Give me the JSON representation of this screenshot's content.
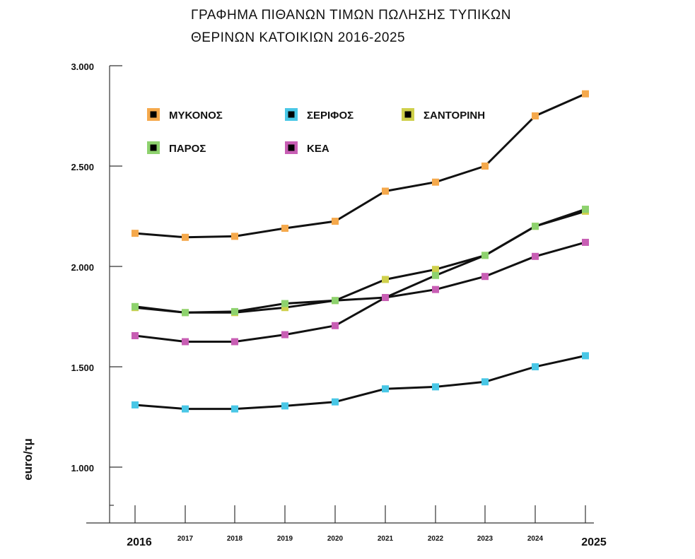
{
  "chart_data": {
    "type": "line",
    "title": [
      "ΓΡΑΦΗΜΑ ΠΙΘΑΝΩΝ ΤΙΜΩΝ ΠΩΛΗΣΗΣ ΤΥΠΙΚΩΝ",
      "ΘΕΡΙΝΩΝ ΚΑΤΟΙΚΙΩΝ 2016-2025"
    ],
    "xlabel": "",
    "ylabel": "euro/τμ",
    "x": [
      "2016",
      "2017",
      "2018",
      "2019",
      "2020",
      "2021",
      "2022",
      "2023",
      "2024",
      "2025"
    ],
    "ylim": [
      750,
      3000
    ],
    "yticks": [
      1000,
      1500,
      2000,
      2500,
      3000
    ],
    "ytick_labels": [
      "1.000",
      "1.500",
      "2.000",
      "2.500",
      "3.000"
    ],
    "series": [
      {
        "name": "ΜΥΚΟΝΟΣ",
        "color": "#F5A94C",
        "values": [
          2165,
          2145,
          2150,
          2190,
          2225,
          2375,
          2420,
          2500,
          2750,
          2860
        ]
      },
      {
        "name": "ΣΕΡΙΦΟΣ",
        "color": "#49C7E6",
        "values": [
          1310,
          1290,
          1290,
          1305,
          1325,
          1390,
          1400,
          1425,
          1500,
          1555
        ]
      },
      {
        "name": "ΣΑΝΤΟΡΙΝΗ",
        "color": "#CFD04C",
        "values": [
          1795,
          1770,
          1770,
          1795,
          1830,
          1935,
          1985,
          2055,
          2200,
          2275
        ]
      },
      {
        "name": "ΠΑΡΟΣ",
        "color": "#8ED26E",
        "values": [
          1800,
          1770,
          1775,
          1815,
          1830,
          1845,
          1955,
          2055,
          2200,
          2285
        ]
      },
      {
        "name": "ΚΕΑ",
        "color": "#C85EB4",
        "values": [
          1655,
          1625,
          1625,
          1660,
          1705,
          1845,
          1885,
          1950,
          2050,
          2120
        ]
      }
    ],
    "legend": "top-left",
    "grid": false
  }
}
